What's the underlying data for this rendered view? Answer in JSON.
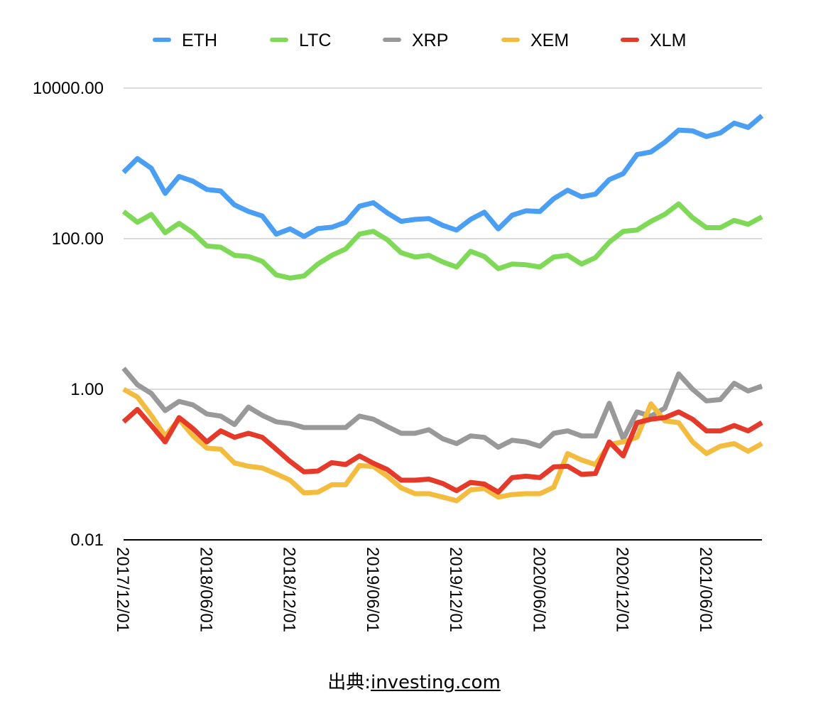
{
  "chart_data": {
    "type": "line",
    "title": "",
    "xlabel": "",
    "ylabel": "",
    "y_scale": "log",
    "ylim": [
      0.01,
      10000
    ],
    "y_ticks": [
      "10000.00",
      "100.00",
      "1.00",
      "0.01"
    ],
    "y_tick_values": [
      10000,
      100,
      1,
      0.01
    ],
    "grid": true,
    "legend_position": "top",
    "x_tick_labels": [
      "2017/12/01",
      "2018/06/01",
      "2018/12/01",
      "2019/06/01",
      "2019/12/01",
      "2020/06/01",
      "2020/12/01",
      "2021/06/01"
    ],
    "x_tick_index": [
      0,
      6,
      12,
      18,
      24,
      30,
      36,
      42
    ],
    "x": [
      "2017/12/01",
      "2018/01/01",
      "2018/02/01",
      "2018/03/01",
      "2018/04/01",
      "2018/05/01",
      "2018/06/01",
      "2018/07/01",
      "2018/08/01",
      "2018/09/01",
      "2018/10/01",
      "2018/11/01",
      "2018/12/01",
      "2019/01/01",
      "2019/02/01",
      "2019/03/01",
      "2019/04/01",
      "2019/05/01",
      "2019/06/01",
      "2019/07/01",
      "2019/08/01",
      "2019/09/01",
      "2019/10/01",
      "2019/11/01",
      "2019/12/01",
      "2020/01/01",
      "2020/02/01",
      "2020/03/01",
      "2020/04/01",
      "2020/05/01",
      "2020/06/01",
      "2020/07/01",
      "2020/08/01",
      "2020/09/01",
      "2020/10/01",
      "2020/11/01",
      "2020/12/01",
      "2021/01/01",
      "2021/02/01",
      "2021/03/01",
      "2021/04/01",
      "2021/05/01",
      "2021/06/01",
      "2021/07/01",
      "2021/08/01",
      "2021/09/01",
      "2021/10/01"
    ],
    "series": [
      {
        "name": "ETH",
        "color": "#4A9FF5",
        "values": [
          760,
          1160,
          860,
          400,
          670,
          580,
          450,
          430,
          280,
          230,
          200,
          115,
          135,
          107,
          136,
          142,
          165,
          270,
          300,
          220,
          170,
          180,
          185,
          150,
          130,
          180,
          225,
          135,
          205,
          235,
          230,
          340,
          440,
          360,
          390,
          610,
          730,
          1310,
          1420,
          1910,
          2770,
          2700,
          2270,
          2540,
          3430,
          3000,
          4300
        ]
      },
      {
        "name": "LTC",
        "color": "#7ED957",
        "values": [
          230,
          165,
          210,
          120,
          160,
          120,
          80,
          77,
          60,
          58,
          50,
          33,
          30,
          32,
          46,
          60,
          73,
          115,
          125,
          97,
          65,
          57,
          60,
          49,
          42,
          68,
          58,
          40,
          46,
          45,
          42,
          57,
          60,
          46,
          56,
          90,
          125,
          130,
          170,
          210,
          290,
          190,
          140,
          140,
          175,
          155,
          195
        ]
      },
      {
        "name": "XRP",
        "color": "#999999",
        "values": [
          1.9,
          1.15,
          0.88,
          0.52,
          0.69,
          0.62,
          0.47,
          0.44,
          0.34,
          0.58,
          0.45,
          0.37,
          0.35,
          0.31,
          0.31,
          0.31,
          0.31,
          0.44,
          0.4,
          0.32,
          0.26,
          0.26,
          0.29,
          0.22,
          0.19,
          0.24,
          0.23,
          0.17,
          0.21,
          0.2,
          0.175,
          0.26,
          0.28,
          0.24,
          0.24,
          0.65,
          0.22,
          0.5,
          0.44,
          0.56,
          1.6,
          1.0,
          0.7,
          0.73,
          1.2,
          0.95,
          1.1
        ]
      },
      {
        "name": "XEM",
        "color": "#F4BC3E",
        "values": [
          1.0,
          0.79,
          0.45,
          0.24,
          0.4,
          0.24,
          0.165,
          0.16,
          0.105,
          0.095,
          0.09,
          0.075,
          0.062,
          0.042,
          0.043,
          0.054,
          0.054,
          0.097,
          0.094,
          0.07,
          0.049,
          0.041,
          0.041,
          0.037,
          0.033,
          0.046,
          0.048,
          0.037,
          0.04,
          0.041,
          0.041,
          0.05,
          0.14,
          0.115,
          0.1,
          0.185,
          0.2,
          0.23,
          0.64,
          0.38,
          0.36,
          0.2,
          0.14,
          0.175,
          0.19,
          0.15,
          0.19
        ]
      },
      {
        "name": "XLM",
        "color": "#E53A2A",
        "values": [
          0.37,
          0.54,
          0.33,
          0.2,
          0.42,
          0.3,
          0.2,
          0.28,
          0.23,
          0.26,
          0.23,
          0.16,
          0.11,
          0.08,
          0.082,
          0.106,
          0.1,
          0.13,
          0.104,
          0.086,
          0.062,
          0.062,
          0.064,
          0.056,
          0.045,
          0.058,
          0.055,
          0.043,
          0.067,
          0.07,
          0.067,
          0.093,
          0.095,
          0.074,
          0.076,
          0.2,
          0.13,
          0.36,
          0.4,
          0.42,
          0.5,
          0.4,
          0.28,
          0.28,
          0.33,
          0.28,
          0.36
        ]
      }
    ]
  },
  "source": {
    "prefix": "出典:",
    "link": "investing.com"
  }
}
